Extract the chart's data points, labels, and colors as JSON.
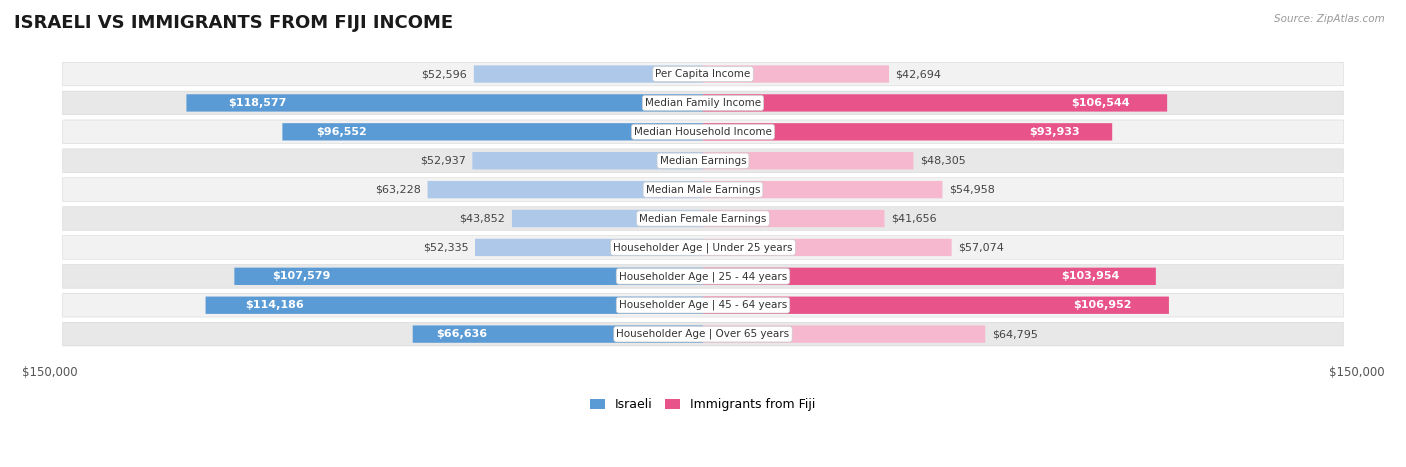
{
  "title": "ISRAELI VS IMMIGRANTS FROM FIJI INCOME",
  "source": "Source: ZipAtlas.com",
  "categories": [
    "Per Capita Income",
    "Median Family Income",
    "Median Household Income",
    "Median Earnings",
    "Median Male Earnings",
    "Median Female Earnings",
    "Householder Age | Under 25 years",
    "Householder Age | 25 - 44 years",
    "Householder Age | 45 - 64 years",
    "Householder Age | Over 65 years"
  ],
  "israeli_values": [
    52596,
    118577,
    96552,
    52937,
    63228,
    43852,
    52335,
    107579,
    114186,
    66636
  ],
  "fiji_values": [
    42694,
    106544,
    93933,
    48305,
    54958,
    41656,
    57074,
    103954,
    106952,
    64795
  ],
  "israeli_labels": [
    "$52,596",
    "$118,577",
    "$96,552",
    "$52,937",
    "$63,228",
    "$43,852",
    "$52,335",
    "$107,579",
    "$114,186",
    "$66,636"
  ],
  "fiji_labels": [
    "$42,694",
    "$106,544",
    "$93,933",
    "$48,305",
    "$54,958",
    "$41,656",
    "$57,074",
    "$103,954",
    "$106,952",
    "$64,795"
  ],
  "israeli_color_light": "#adc8e8",
  "israeli_color_dark": "#5b9bd5",
  "fiji_color_light": "#f5b8ce",
  "fiji_color_dark": "#e8538a",
  "max_val": 150000,
  "bg_color": "#ffffff",
  "row_bg_even": "#f2f2f2",
  "row_bg_odd": "#e8e8e8",
  "label_fontsize": 8.0,
  "title_fontsize": 13,
  "threshold": 65000
}
